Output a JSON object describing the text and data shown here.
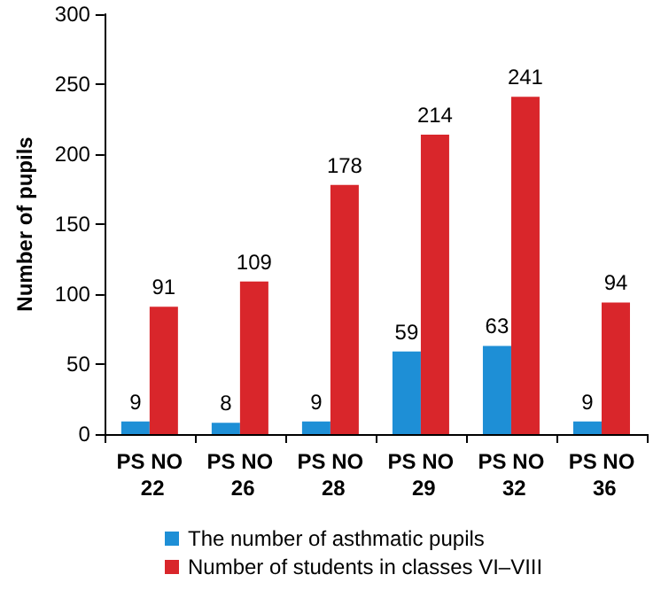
{
  "chart_data": {
    "type": "bar",
    "ylabel": "Number of pupils",
    "categories": [
      "PS NO 22",
      "PS NO 26",
      "PS NO 28",
      "PS NO 29",
      "PS NO 32",
      "PS NO 36"
    ],
    "series": [
      {
        "name": "The number of asthmatic pupils",
        "color": "#1e8fd6",
        "values": [
          9,
          8,
          9,
          59,
          63,
          9
        ]
      },
      {
        "name": "Number of students in classes VI–VIII",
        "color": "#d9262b",
        "values": [
          91,
          109,
          178,
          214,
          241,
          94
        ]
      }
    ],
    "ylim": [
      0,
      300
    ],
    "yticks": [
      0,
      50,
      100,
      150,
      200,
      250,
      300
    ],
    "grid": false,
    "legend": "bottom",
    "data_labels": true
  }
}
